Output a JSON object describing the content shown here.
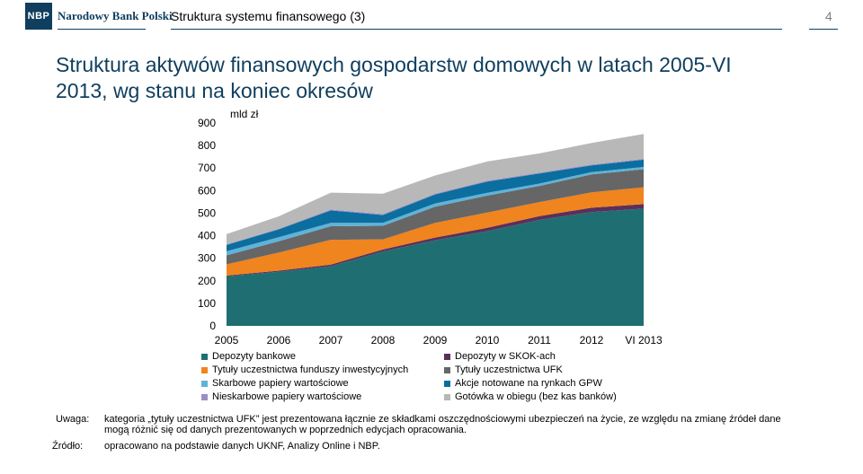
{
  "header": {
    "logo_text": "NBP",
    "bank_name": "Narodowy Bank Polski",
    "slide_title": "Struktura systemu finansowego (3)",
    "page_number": "4",
    "brand_color": "#0f3e5e"
  },
  "slide": {
    "title": "Struktura aktywów finansowych gospodarstw domowych w latach 2005-VI 2013, wg stanu na koniec okresów"
  },
  "chart_data": {
    "type": "area",
    "stacked": true,
    "unit_label": "mld zł",
    "categories": [
      "2005",
      "2006",
      "2007",
      "2008",
      "2009",
      "2010",
      "2011",
      "2012",
      "VI 2013"
    ],
    "ylim": [
      0,
      900
    ],
    "yticks": [
      0,
      100,
      200,
      300,
      400,
      500,
      600,
      700,
      800,
      900
    ],
    "grid": false,
    "legend_position": "bottom",
    "series": [
      {
        "name": "Depozyty bankowe",
        "color": "#1f6f72",
        "values": [
          220,
          240,
          265,
          330,
          380,
          420,
          470,
          505,
          520
        ]
      },
      {
        "name": "Depozyty w SKOK-ach",
        "color": "#5c2f59",
        "values": [
          3,
          5,
          7,
          9,
          12,
          15,
          17,
          19,
          20
        ]
      },
      {
        "name": "Tytuły uczestnictwa funduszy inwestycyjnych",
        "color": "#f0841e",
        "values": [
          50,
          80,
          110,
          45,
          65,
          68,
          62,
          68,
          75
        ]
      },
      {
        "name": "Tytuły uczestnictwa UFK",
        "color": "#666666",
        "values": [
          40,
          50,
          60,
          60,
          72,
          75,
          72,
          80,
          80
        ]
      },
      {
        "name": "Skarbowe papiery wartościowe",
        "color": "#5fb3d9",
        "values": [
          18,
          18,
          15,
          13,
          14,
          12,
          10,
          10,
          10
        ]
      },
      {
        "name": "Akcje notowane na rynkach GPW",
        "color": "#0b6e9f",
        "values": [
          28,
          35,
          55,
          35,
          40,
          50,
          45,
          30,
          32
        ]
      },
      {
        "name": "Nieskarbowe papiery wartościowe",
        "color": "#9b8ec4",
        "values": [
          3,
          3,
          4,
          4,
          4,
          4,
          4,
          4,
          4
        ]
      },
      {
        "name": "Gotówka w obiegu (bez kas banków)",
        "color": "#b8b8b8",
        "values": [
          45,
          55,
          75,
          90,
          80,
          85,
          85,
          95,
          110
        ]
      }
    ]
  },
  "notes": {
    "remark_label": "Uwaga:",
    "remark_text": "kategoria „tytuły uczestnictwa UFK” jest prezentowana łącznie ze składkami oszczędnościowymi ubezpieczeń na życie, ze względu na zmianę źródeł dane mogą różnić się od danych prezentowanych w poprzednich edycjach opracowania.",
    "source_label": "Źródło:",
    "source_text": "opracowano na podstawie danych UKNF, Analizy Online i NBP."
  }
}
